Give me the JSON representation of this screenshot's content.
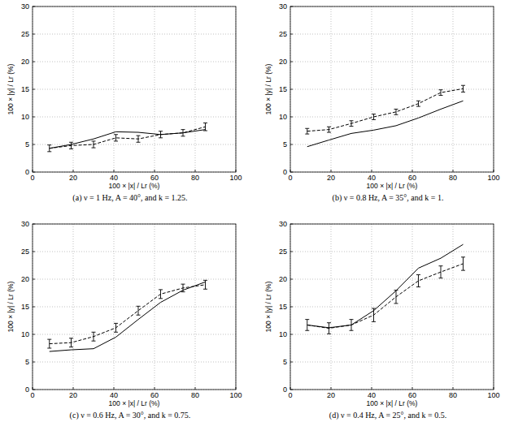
{
  "chart_data": [
    {
      "type": "line",
      "title": "(a) ν = 1 Hz, A = 40°, and k = 1.25.",
      "x_label": "100 × |x| / Lr (%)",
      "y_label": "100 × |y| / Lr (%)",
      "x": [
        8.3,
        19,
        30,
        41,
        52,
        63,
        74,
        85
      ],
      "xlim": [
        0,
        100
      ],
      "xticks": [
        0,
        20,
        40,
        60,
        80,
        100
      ],
      "ylim": [
        0,
        30
      ],
      "yticks": [
        0,
        5,
        10,
        15,
        20,
        25,
        30
      ],
      "grid": true,
      "series": [
        {
          "color": "#000000",
          "line_style": "solid",
          "values": [
            4.3,
            5.0,
            6.0,
            7.3,
            7.2,
            6.8,
            7.1,
            7.7
          ]
        },
        {
          "color": "#000000",
          "line_style": "dashed",
          "values": [
            4.3,
            4.8,
            5.0,
            6.2,
            6.0,
            6.8,
            7.1,
            8.2
          ],
          "errors": [
            0.6,
            0.6,
            0.6,
            0.6,
            0.6,
            0.6,
            0.6,
            0.7
          ]
        }
      ]
    },
    {
      "type": "line",
      "title": "(b) ν = 0.8 Hz, A = 35°, and k = 1.",
      "x_label": "100 × |x| / Lr (%)",
      "y_label": "100 × |y| / Lr (%)",
      "x": [
        8.3,
        19,
        30,
        41,
        52,
        63,
        74,
        85
      ],
      "xlim": [
        0,
        100
      ],
      "xticks": [
        0,
        20,
        40,
        60,
        80,
        100
      ],
      "ylim": [
        0,
        30
      ],
      "yticks": [
        0,
        5,
        10,
        15,
        20,
        25,
        30
      ],
      "grid": true,
      "series": [
        {
          "color": "#000000",
          "line_style": "solid",
          "values": [
            4.6,
            5.8,
            7.0,
            7.6,
            8.4,
            9.8,
            11.4,
            12.9
          ]
        },
        {
          "color": "#000000",
          "line_style": "dashed",
          "values": [
            7.4,
            7.7,
            8.8,
            10.0,
            10.9,
            12.4,
            14.4,
            15.1
          ],
          "errors": [
            0.5,
            0.5,
            0.5,
            0.5,
            0.5,
            0.5,
            0.5,
            0.6
          ]
        }
      ]
    },
    {
      "type": "line",
      "title": "(c) ν = 0.6 Hz, A = 30°, and k = 0.75.",
      "x_label": "100 × |x| / Lr (%)",
      "y_label": "100 × |y| / Lr (%)",
      "x": [
        8.3,
        19,
        30,
        41,
        52,
        63,
        74,
        85
      ],
      "xlim": [
        0,
        100
      ],
      "xticks": [
        0,
        20,
        40,
        60,
        80,
        100
      ],
      "ylim": [
        0,
        30
      ],
      "yticks": [
        0,
        5,
        10,
        15,
        20,
        25,
        30
      ],
      "grid": true,
      "series": [
        {
          "color": "#000000",
          "line_style": "solid",
          "values": [
            6.9,
            7.2,
            7.4,
            9.5,
            12.7,
            15.8,
            18.0,
            19.5
          ]
        },
        {
          "color": "#000000",
          "line_style": "dashed",
          "values": [
            8.3,
            8.5,
            9.6,
            11.2,
            14.3,
            17.3,
            18.4,
            19.0
          ],
          "errors": [
            0.8,
            0.8,
            0.8,
            0.8,
            0.8,
            0.8,
            0.7,
            0.8
          ]
        }
      ]
    },
    {
      "type": "line",
      "title": "(d) ν = 0.4 Hz, A = 25°, and k = 0.5.",
      "x_label": "100 × |x| / Lr (%)",
      "y_label": "100 × |y| / Lr (%)",
      "x": [
        8.3,
        19,
        30,
        41,
        52,
        63,
        74,
        85
      ],
      "xlim": [
        0,
        100
      ],
      "xticks": [
        0,
        20,
        40,
        60,
        80,
        100
      ],
      "ylim": [
        0,
        30
      ],
      "yticks": [
        0,
        5,
        10,
        15,
        20,
        25,
        30
      ],
      "grid": true,
      "series": [
        {
          "color": "#000000",
          "line_style": "solid",
          "values": [
            11.7,
            11.2,
            11.7,
            14.3,
            17.9,
            22.0,
            23.8,
            26.3
          ]
        },
        {
          "color": "#000000",
          "line_style": "dashed",
          "values": [
            11.7,
            11.1,
            11.7,
            13.5,
            16.8,
            19.7,
            21.3,
            22.8
          ],
          "errors": [
            1.0,
            1.0,
            1.0,
            1.2,
            1.2,
            1.1,
            1.1,
            1.2
          ]
        }
      ]
    }
  ]
}
